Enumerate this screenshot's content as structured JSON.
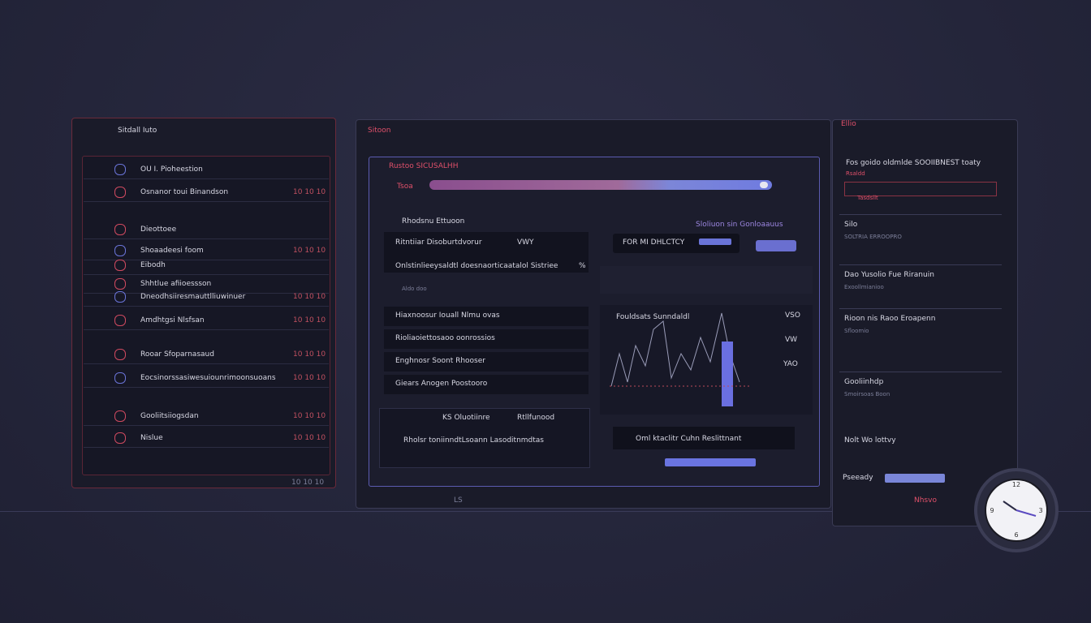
{
  "left_panel": {
    "title": "Sitdall Iuto",
    "items": [
      {
        "label": "OU I. Pioheestion"
      },
      {
        "label": "Osnanor toui Binandson",
        "value": "10 10 10"
      },
      {
        "label": "Dieottoee"
      },
      {
        "label": "Shoaadeesi foom",
        "value": "10 10 10"
      },
      {
        "label": "Eibodh"
      },
      {
        "label": "Shhtlue afiioessson"
      },
      {
        "label": "Dneodhsiiresmauttlliuwinuer",
        "value": "10 10 10"
      },
      {
        "label": "Amdhtgsi Nlsfsan",
        "value": "10 10 10"
      },
      {
        "label": "Rooar Sfoparnasaud",
        "value": "10 10 10"
      },
      {
        "label": "Eocsinorssasiwesuiounrimoonsuoans",
        "value": "10 10 10"
      },
      {
        "label": "Gooliitsiiogsdan",
        "value": "10 10 10"
      },
      {
        "label": "Nislue",
        "value": "10 10 10"
      }
    ],
    "footer": "10 10 10"
  },
  "center_panel": {
    "title": "Sitoon",
    "header": "Rustoo SICUSALHH",
    "search": "Tsoa",
    "card_title": "Rhodsnu Ettuoon",
    "card_rows": [
      {
        "label": "Ritntiiar Disoburtdvorur",
        "value": "VWY"
      },
      {
        "label": "Onlstinlieeysaldtl doesnaorticaatalol Sistriee",
        "value": "%"
      }
    ],
    "card_note": "Aldo doo",
    "right_tabs": "Sloliuon sin Gonloaauus",
    "filter_label": "FOR MI DHLCTCY",
    "list_rows": [
      "Hiaxnoosur Iouall Nlmu ovas",
      "Rioliaoiettosaoo oonrossios",
      "Enghnosr Soont Rhooser",
      "Giears Anogen Poostooro"
    ],
    "chart_title": "Fouldsats Sunndaldl",
    "chart_labels": [
      "VSO",
      "VW",
      "YAO"
    ],
    "bottom_left_title": "KS Oluotiinre",
    "bottom_left_tag": "Rtllfunood",
    "bottom_left_row": "Rholsr toniinndtLsoann Lasoditnmdtas",
    "bottom_right_row": "Oml ktaclitr Cuhn Reslittnant",
    "footer": "LS"
  },
  "right_panel": {
    "title": "Ellio",
    "header": "Fos goido oldmlde SOOIIBNEST toaty",
    "sub": "Rsaldd",
    "input_label": "Tasdsllt",
    "sections": [
      {
        "title": "Silo",
        "text": "SOLTRIA ERROOPRO"
      },
      {
        "title": "Dao Yusolio Fue Riranuin",
        "text": "Exoollmianioo"
      },
      {
        "title": "Rioon nis Raoo Eroapenn",
        "text": "Sfloomio"
      },
      {
        "title": "Gooliinhdp",
        "text": "Smoirsoas Boon"
      }
    ],
    "status": "Nolt Wo lottvy",
    "ready_label": "Pseeady",
    "footer": "Nhsvo"
  },
  "clock_labels": [
    "12",
    "3",
    "6",
    "9"
  ]
}
